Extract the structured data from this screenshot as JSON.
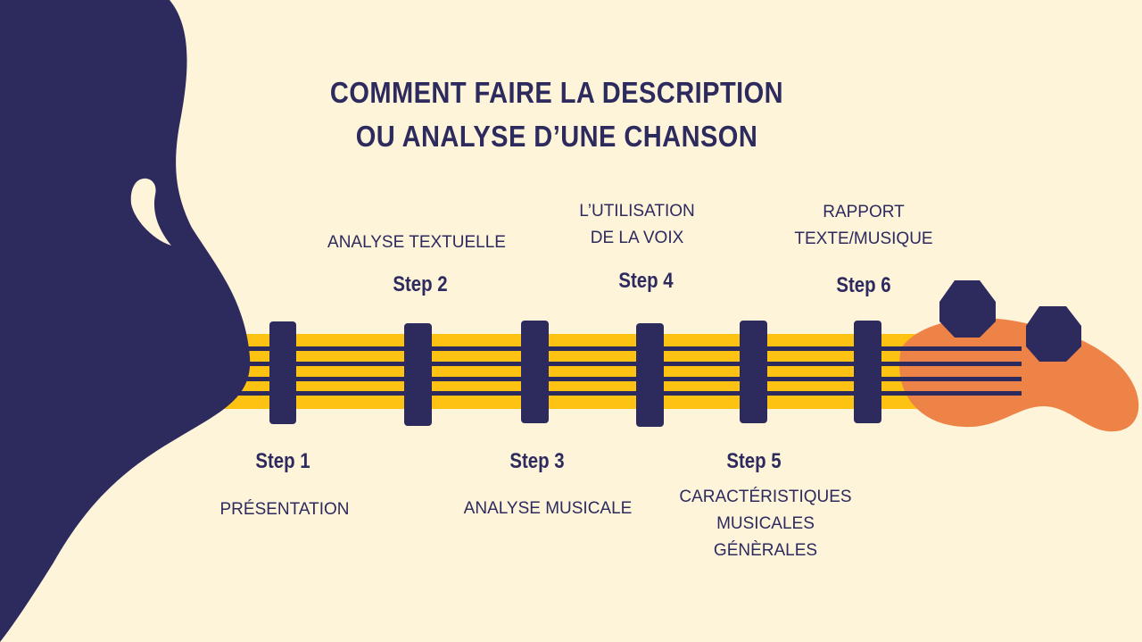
{
  "title": {
    "line1": "COMMENT FAIRE LA DESCRIPTION",
    "line2": "OU ANALYSE D’UNE CHANSON"
  },
  "colors": {
    "background": "#fef4da",
    "navy": "#2d2a5e",
    "yellow": "#fdc212",
    "orange": "#ee8347"
  },
  "steps": [
    {
      "label": "Step 1",
      "desc": [
        "PRÉSENTATION"
      ]
    },
    {
      "label": "Step 2",
      "desc": [
        "ANALYSE TEXTUELLE"
      ]
    },
    {
      "label": "Step 3",
      "desc": [
        "ANALYSE MUSICALE"
      ]
    },
    {
      "label": "Step 4",
      "desc": [
        "L’UTILISATION",
        "DE LA VOIX"
      ]
    },
    {
      "label": "Step 5",
      "desc": [
        "CARACTÉRISTIQUES",
        "MUSICALES",
        "GÉNÈRALES"
      ]
    },
    {
      "label": "Step 6",
      "desc": [
        "RAPPORT",
        "TEXTE/MUSIQUE"
      ]
    }
  ]
}
